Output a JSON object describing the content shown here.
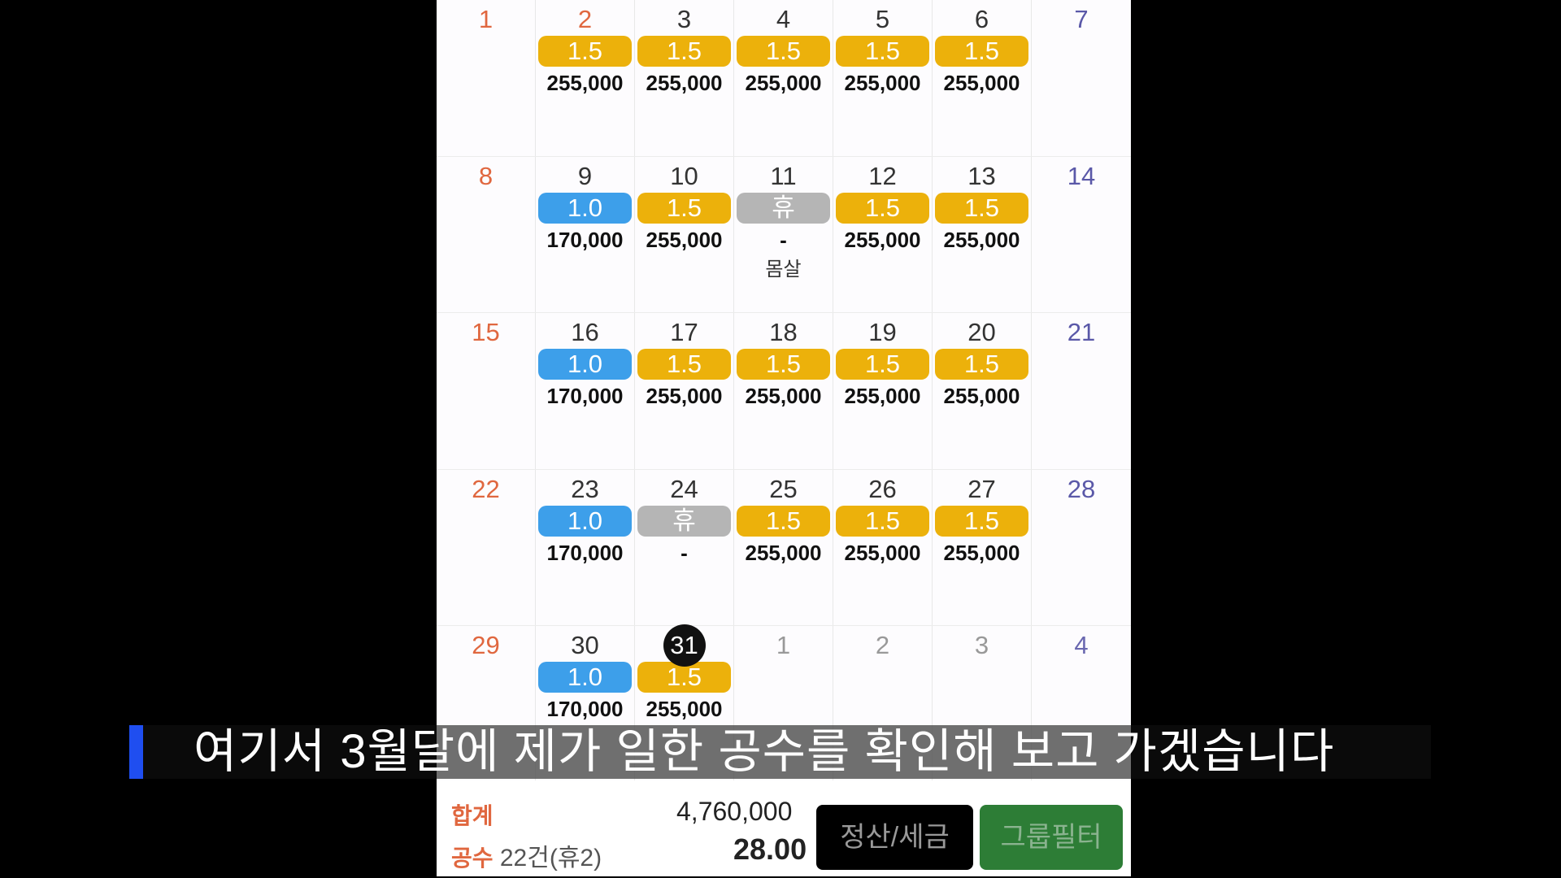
{
  "weeks": [
    [
      {
        "day": "1",
        "type": "sun"
      },
      {
        "day": "2",
        "type": "sun",
        "badge": "1.5",
        "color": "y",
        "amount": "255,000"
      },
      {
        "day": "3",
        "badge": "1.5",
        "color": "y",
        "amount": "255,000"
      },
      {
        "day": "4",
        "badge": "1.5",
        "color": "y",
        "amount": "255,000"
      },
      {
        "day": "5",
        "badge": "1.5",
        "color": "y",
        "amount": "255,000"
      },
      {
        "day": "6",
        "badge": "1.5",
        "color": "y",
        "amount": "255,000"
      },
      {
        "day": "7",
        "type": "sat"
      }
    ],
    [
      {
        "day": "8",
        "type": "sun"
      },
      {
        "day": "9",
        "badge": "1.0",
        "color": "b",
        "amount": "170,000"
      },
      {
        "day": "10",
        "badge": "1.5",
        "color": "y",
        "amount": "255,000"
      },
      {
        "day": "11",
        "badge": "휴",
        "color": "g",
        "amount": "-",
        "note": "몸살"
      },
      {
        "day": "12",
        "badge": "1.5",
        "color": "y",
        "amount": "255,000"
      },
      {
        "day": "13",
        "badge": "1.5",
        "color": "y",
        "amount": "255,000"
      },
      {
        "day": "14",
        "type": "sat"
      }
    ],
    [
      {
        "day": "15",
        "type": "sun"
      },
      {
        "day": "16",
        "badge": "1.0",
        "color": "b",
        "amount": "170,000"
      },
      {
        "day": "17",
        "badge": "1.5",
        "color": "y",
        "amount": "255,000"
      },
      {
        "day": "18",
        "badge": "1.5",
        "color": "y",
        "amount": "255,000"
      },
      {
        "day": "19",
        "badge": "1.5",
        "color": "y",
        "amount": "255,000"
      },
      {
        "day": "20",
        "badge": "1.5",
        "color": "y",
        "amount": "255,000"
      },
      {
        "day": "21",
        "type": "sat"
      }
    ],
    [
      {
        "day": "22",
        "type": "sun"
      },
      {
        "day": "23",
        "badge": "1.0",
        "color": "b",
        "amount": "170,000"
      },
      {
        "day": "24",
        "badge": "휴",
        "color": "g",
        "amount": "-"
      },
      {
        "day": "25",
        "badge": "1.5",
        "color": "y",
        "amount": "255,000"
      },
      {
        "day": "26",
        "badge": "1.5",
        "color": "y",
        "amount": "255,000"
      },
      {
        "day": "27",
        "badge": "1.5",
        "color": "y",
        "amount": "255,000"
      },
      {
        "day": "28",
        "type": "sat"
      }
    ],
    [
      {
        "day": "29",
        "type": "sun"
      },
      {
        "day": "30",
        "badge": "1.0",
        "color": "b",
        "amount": "170,000"
      },
      {
        "day": "31",
        "type": "today",
        "badge": "1.5",
        "color": "y",
        "amount": "255,000"
      },
      {
        "day": "1",
        "type": "other"
      },
      {
        "day": "2",
        "type": "other"
      },
      {
        "day": "3",
        "type": "other"
      },
      {
        "day": "4",
        "type": "other sat"
      }
    ]
  ],
  "colors": {
    "y": "#ecb10b",
    "b": "#3d9fea",
    "g": "#b5b5b5"
  },
  "summary": {
    "total_label": "합계",
    "total_value": "4,760,000",
    "count_label": "공수",
    "count_text": "22건(휴2)",
    "count_value": "28.00"
  },
  "buttons": {
    "settle": "정산/세금",
    "filter": "그룹필터"
  },
  "caption": "여기서 3월달에 제가 일한 공수를 확인해 보고 가겠습니다"
}
